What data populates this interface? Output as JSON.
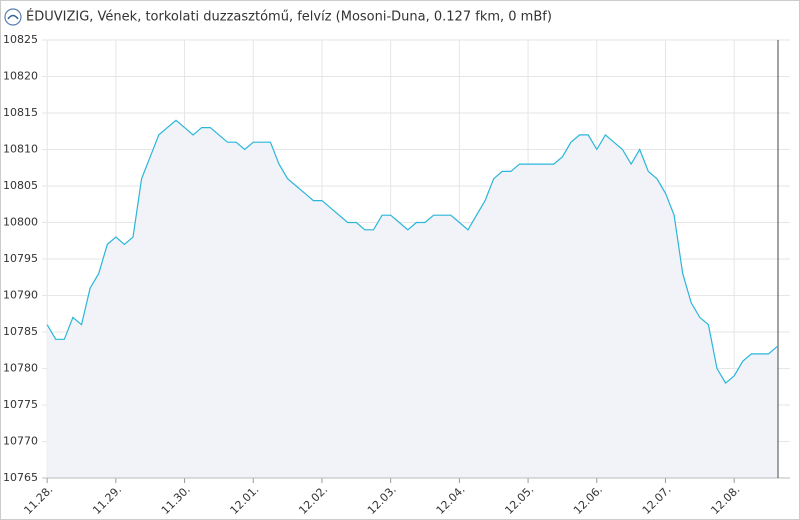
{
  "chart_data": {
    "type": "line",
    "title": "ÉDUVIZIG, Vének, torkolati duzzasztómű, felvíz (Mosoni-Duna, 0.127 fkm, 0 mBf)",
    "color": "#2bb6d9",
    "area_color": "#f1f3f8",
    "grid": true,
    "ylim": [
      10765,
      10825
    ],
    "yticks": [
      10765,
      10770,
      10775,
      10780,
      10785,
      10790,
      10795,
      10800,
      10805,
      10810,
      10815,
      10820,
      10825
    ],
    "xlim": [
      -0.6,
      86.5
    ],
    "xticks": [
      {
        "value": 0,
        "label": "11.28."
      },
      {
        "value": 8,
        "label": "11.29."
      },
      {
        "value": 16,
        "label": "11.30."
      },
      {
        "value": 24,
        "label": "12.01."
      },
      {
        "value": 32,
        "label": "12.02."
      },
      {
        "value": 40,
        "label": "12.03."
      },
      {
        "value": 48,
        "label": "12.04."
      },
      {
        "value": 56,
        "label": "12.05."
      },
      {
        "value": 64,
        "label": "12.06."
      },
      {
        "value": 72,
        "label": "12.07."
      },
      {
        "value": 80,
        "label": "12.08."
      }
    ],
    "values": [
      10786,
      10784,
      10784,
      10787,
      10786,
      10791,
      10793,
      10797,
      10798,
      10797,
      10798,
      10806,
      10809,
      10812,
      10813,
      10814,
      10813,
      10812,
      10813,
      10813,
      10812,
      10811,
      10811,
      10810,
      10811,
      10811,
      10811,
      10808,
      10806,
      10805,
      10804,
      10803,
      10803,
      10802,
      10801,
      10800,
      10800,
      10799,
      10799,
      10801,
      10801,
      10800,
      10799,
      10800,
      10800,
      10801,
      10801,
      10801,
      10800,
      10799,
      10801,
      10803,
      10806,
      10807,
      10807,
      10808,
      10808,
      10808,
      10808,
      10808,
      10809,
      10811,
      10812,
      10812,
      10810,
      10812,
      10811,
      10810,
      10808,
      10810,
      10807,
      10806,
      10804,
      10801,
      10793,
      10789,
      10787,
      10786,
      10780,
      10778,
      10779,
      10781,
      10782,
      10782,
      10782,
      10783
    ]
  }
}
